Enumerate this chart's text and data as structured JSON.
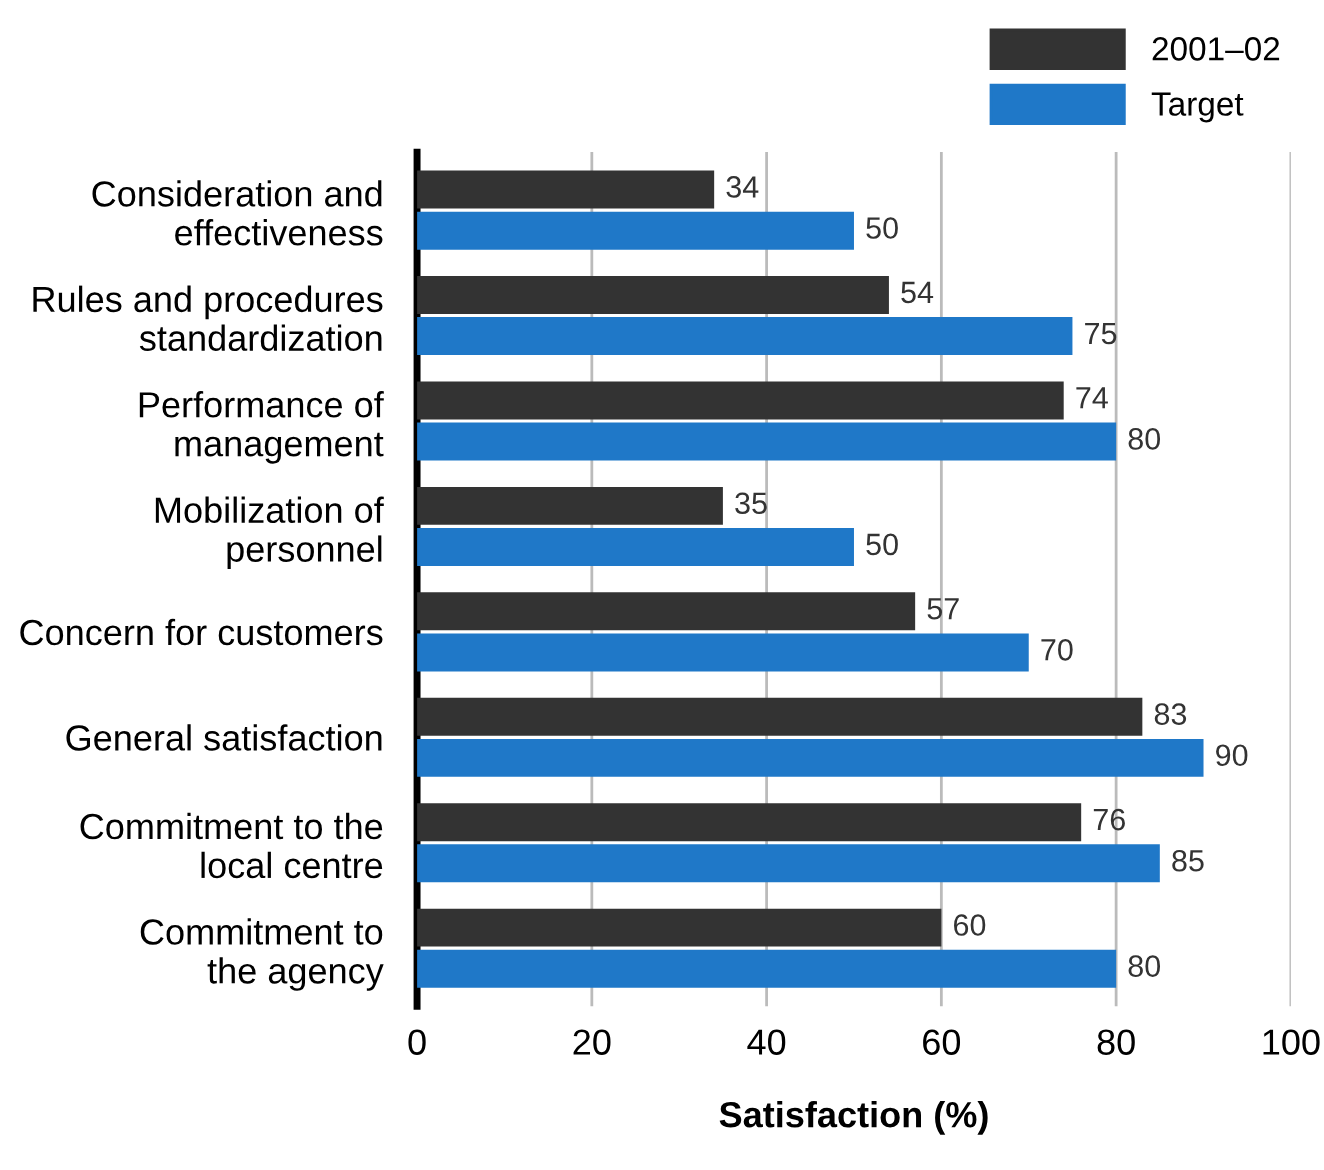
{
  "chart_data": {
    "type": "bar",
    "orientation": "horizontal",
    "xlabel": "Satisfaction (%)",
    "categories": [
      "Consideration and\neffectiveness",
      "Rules and procedures\nstandardization",
      "Performance of\nmanagement",
      "Mobilization of\npersonnel",
      "Concern for customers",
      "General satisfaction",
      "Commitment to the\nlocal centre",
      "Commitment to\nthe agency"
    ],
    "series": [
      {
        "name": "2001–02",
        "color": "#333333",
        "values": [
          34,
          54,
          74,
          35,
          57,
          83,
          76,
          60
        ]
      },
      {
        "name": "Target",
        "color": "#1f78c8",
        "values": [
          50,
          75,
          80,
          50,
          70,
          90,
          85,
          80
        ]
      }
    ],
    "xlim": [
      0,
      100
    ],
    "xticks": [
      0,
      20,
      40,
      60,
      80,
      100
    ],
    "grid": "x",
    "legend": "top right",
    "data_labels": true
  }
}
